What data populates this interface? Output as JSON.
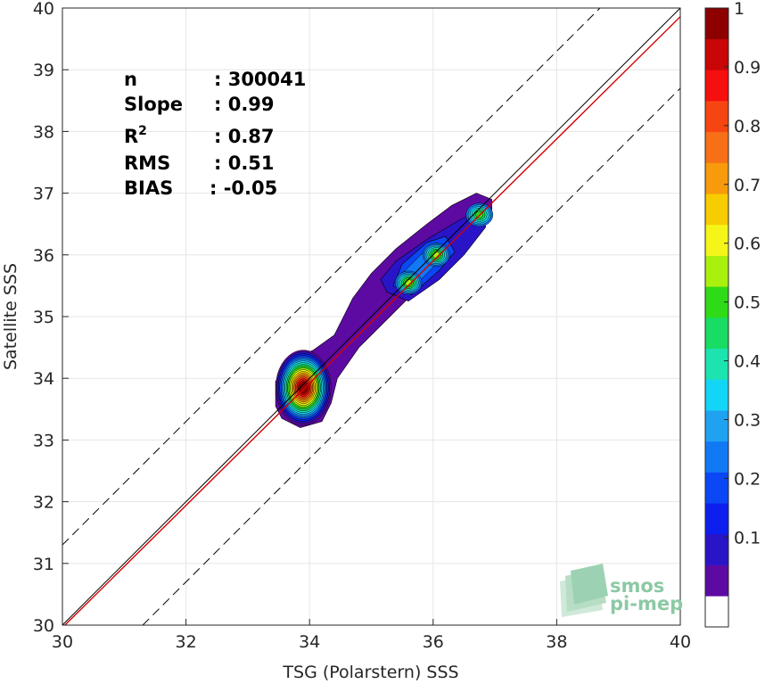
{
  "chart_data": {
    "type": "contour",
    "xlabel": "TSG (Polarstern) SSS",
    "ylabel": "Satellite SSS",
    "xlim": [
      30,
      40
    ],
    "ylim": [
      30,
      40
    ],
    "x_ticks": [
      "30",
      "32",
      "34",
      "36",
      "38",
      "40"
    ],
    "y_ticks": [
      "30",
      "31",
      "32",
      "33",
      "34",
      "35",
      "36",
      "37",
      "38",
      "39",
      "40"
    ],
    "grid": true,
    "stats": [
      {
        "label": "n",
        "sup": "",
        "value": ": 300041"
      },
      {
        "label": "Slope",
        "sup": "",
        "value": ": 0.99"
      },
      {
        "label": "R",
        "sup": "2",
        "value": ": 0.87"
      },
      {
        "label": "RMS",
        "sup": "",
        "value": ": 0.51"
      },
      {
        "label": "BIAS",
        "sup": "",
        "value": ": -0.05"
      }
    ],
    "lines": {
      "one_to_one": {
        "x": [
          30,
          40
        ],
        "y": [
          30,
          40
        ],
        "color": "#000000"
      },
      "regression": {
        "slope": 0.99,
        "intercept": 0.26,
        "color": "#d40000"
      },
      "upper_bound": {
        "offset": 1.3,
        "style": "dashed"
      },
      "lower_bound": {
        "offset": -1.3,
        "style": "dashed"
      }
    },
    "density_peaks": [
      {
        "x": 33.9,
        "y": 33.85,
        "max": 1.0
      },
      {
        "x": 35.6,
        "y": 35.55,
        "max": 0.35
      },
      {
        "x": 36.05,
        "y": 36.0,
        "max": 0.35
      },
      {
        "x": 36.75,
        "y": 36.65,
        "max": 0.3
      }
    ],
    "colorbar": {
      "ticks": [
        "0.1",
        "0.2",
        "0.3",
        "0.4",
        "0.5",
        "0.6",
        "0.7",
        "0.8",
        "0.9",
        "1"
      ],
      "range": [
        0,
        1
      ],
      "levels": 19
    },
    "colors": {
      "levels": [
        "#ffffff",
        "#5d0aa3",
        "#2a14c8",
        "#0d1fef",
        "#0b47f5",
        "#1279f5",
        "#1fa3f1",
        "#13d6f7",
        "#1ce3b0",
        "#18dc63",
        "#2fdb16",
        "#aaf00f",
        "#f5f51a",
        "#f7cc00",
        "#f79a0c",
        "#f77017",
        "#f64511",
        "#f60f0f",
        "#c90505",
        "#8e0000"
      ]
    }
  },
  "logo": {
    "line1": "smos",
    "line2": "pi-mep"
  }
}
